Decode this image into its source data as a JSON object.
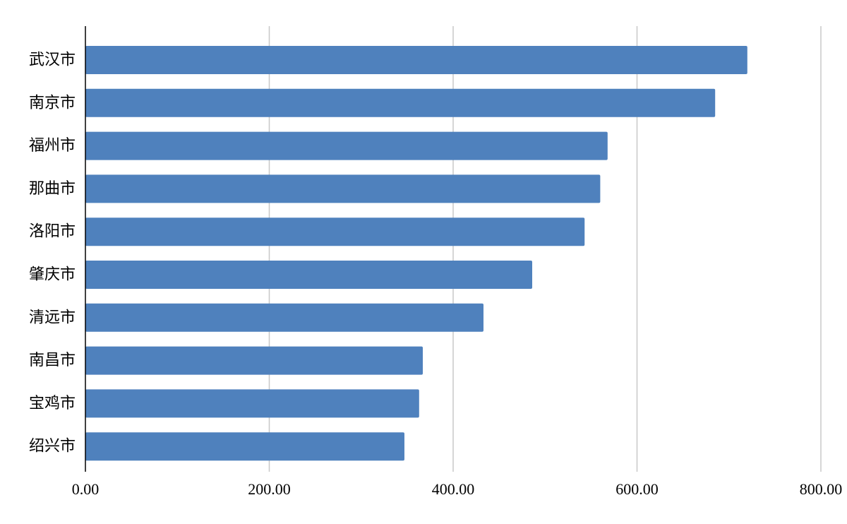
{
  "chart_data": {
    "type": "bar",
    "orientation": "horizontal",
    "categories": [
      "武汉市",
      "南京市",
      "福州市",
      "那曲市",
      "洛阳市",
      "肇庆市",
      "清远市",
      "南昌市",
      "宝鸡市",
      "绍兴市"
    ],
    "values": [
      720,
      685,
      568,
      560,
      543,
      486,
      433,
      367,
      363,
      347
    ],
    "xlim": [
      0,
      800
    ],
    "xticks": [
      "0.00",
      "200.00",
      "400.00",
      "600.00",
      "800.00"
    ],
    "grid": "vertical",
    "title": "",
    "xlabel": "",
    "ylabel": "",
    "bar_color": "#4f81bd",
    "grid_color": "#c8c8c8",
    "axis_color": "#000000"
  }
}
